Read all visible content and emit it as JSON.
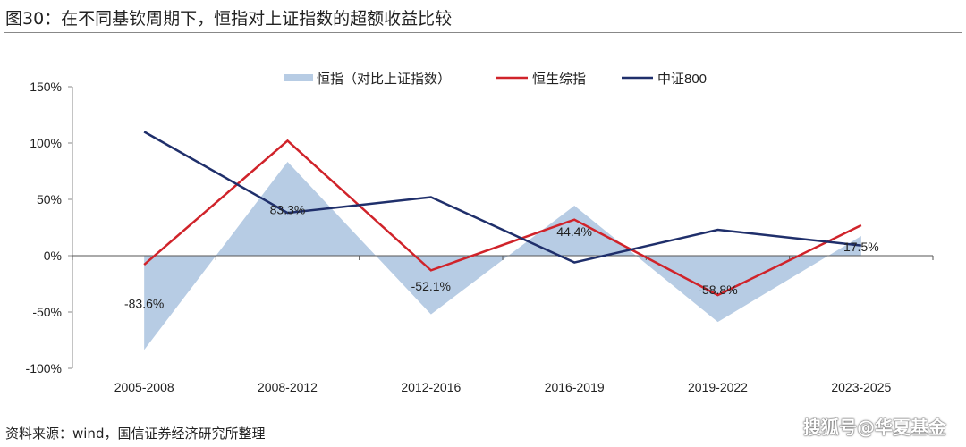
{
  "title": "图30：在不同基钦周期下，恒指对上证指数的超额收益比较",
  "source": "资料来源：wind，国信证券经济研究所整理",
  "watermark": "搜狐号@华夏基金",
  "chart_data": {
    "type": "line",
    "title": "",
    "categories": [
      "2005-2008",
      "2008-2012",
      "2012-2016",
      "2016-2019",
      "2019-2022",
      "2023-2025"
    ],
    "ylim": [
      -100,
      150
    ],
    "yticks": [
      150,
      100,
      50,
      0,
      -50,
      -100
    ],
    "ytick_labels": [
      "150%",
      "100%",
      "50%",
      "0%",
      "-50%",
      "-100%"
    ],
    "legend_position": "top",
    "series": [
      {
        "name": "恒指（对比上证指数）",
        "type": "area",
        "color": "#b7cce4",
        "values": [
          -83.6,
          83.3,
          -52.1,
          44.4,
          -58.8,
          17.5
        ],
        "labels": [
          "-83.6%",
          "83.3%",
          "-52.1%",
          "44.4%",
          "-58.8%",
          "17.5%"
        ]
      },
      {
        "name": "恒生综指",
        "type": "line",
        "color": "#d0232a",
        "values": [
          -8,
          102,
          -13,
          32,
          -35,
          27
        ]
      },
      {
        "name": "中证800",
        "type": "line",
        "color": "#1f2f6b",
        "values": [
          110,
          38,
          52,
          -6,
          23,
          9
        ]
      }
    ]
  }
}
